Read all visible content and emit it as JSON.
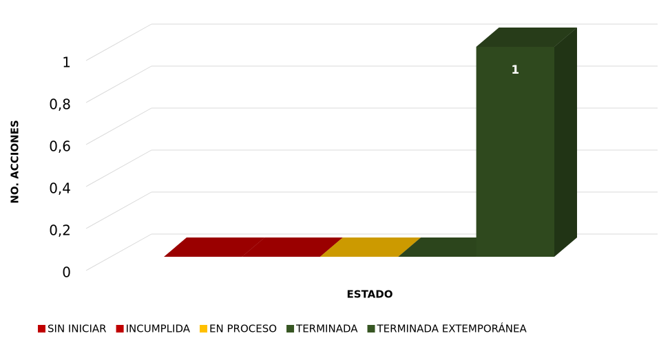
{
  "chart_data": {
    "type": "bar3d",
    "xlabel": "ESTADO",
    "ylabel": "NO. ACCIONES",
    "categories": [
      null
    ],
    "series": [
      {
        "name": "SIN INICIAR",
        "color": "#c00000",
        "values": [
          0
        ]
      },
      {
        "name": "INCUMPLIDA",
        "color": "#c00000",
        "values": [
          0
        ]
      },
      {
        "name": "EN PROCESO",
        "color": "#ffc000",
        "values": [
          0
        ]
      },
      {
        "name": "TERMINADA",
        "color": "#375623",
        "values": [
          0
        ]
      },
      {
        "name": "TERMINADA EXTEMPORÁNEA",
        "color": "#375623",
        "values": [
          1
        ],
        "value_labels": [
          "1"
        ]
      }
    ],
    "ylim": [
      0,
      1.2
    ],
    "yticks": [
      0,
      {
        "value": 0.2,
        "label": "0,2"
      },
      {
        "value": 0.4,
        "label": "0,4"
      },
      {
        "value": 0.6,
        "label": "0,6"
      },
      {
        "value": 0.8,
        "label": "0,8"
      },
      1
    ],
    "grid": true,
    "legend": "bottom"
  }
}
